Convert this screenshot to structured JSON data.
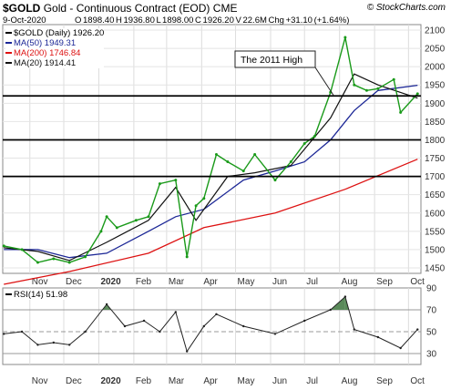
{
  "header": {
    "symbol": "$GOLD",
    "name": "Gold - Continuous Contract (EOD)",
    "exchange": "CME",
    "copyright": "© StockCharts.com",
    "date": "9-Oct-2020",
    "quote": "O 1898.40  H 1936.80  L 1898.00  C 1926.20  V 22.6M  Chg +31.10 (+1.64%)"
  },
  "price_legend": {
    "series_label": "$GOLD (Daily) 1926.20",
    "ma50": "MA(50) 1949.31",
    "ma200": "MA(200) 1746.84",
    "ma20": "MA(20) 1914.41"
  },
  "annotation": {
    "label": "The 2011 High"
  },
  "rsi_legend": {
    "label": "RSI(14) 51.98"
  },
  "colors": {
    "price": "#1a9a1a",
    "ma50": "#1c2796",
    "ma200": "#d11",
    "ma20": "#111111",
    "rsi_fill": "#5a8a5a",
    "hline": "#000000"
  },
  "chart_data": [
    {
      "type": "line",
      "title": "$GOLD (Daily)",
      "x_months": [
        "Nov",
        "Dec",
        "2020",
        "Feb",
        "Mar",
        "Apr",
        "May",
        "Jun",
        "Jul",
        "Aug",
        "Sep",
        "Oct"
      ],
      "y_ticks": [
        1450,
        1500,
        1550,
        1600,
        1650,
        1700,
        1750,
        1800,
        1850,
        1900,
        1950,
        2000,
        2050,
        2100
      ],
      "ylim": [
        1435,
        2115
      ],
      "horizontal_lines": [
        1920,
        1800,
        1700
      ],
      "annotation": {
        "text": "The 2011 High",
        "value": 1920
      },
      "series": [
        {
          "name": "$GOLD (Daily)",
          "x": [
            "2019-10-09",
            "2019-10-25",
            "2019-11-08",
            "2019-11-22",
            "2019-12-06",
            "2019-12-20",
            "2020-01-03",
            "2020-01-08",
            "2020-01-17",
            "2020-02-03",
            "2020-02-14",
            "2020-02-24",
            "2020-03-09",
            "2020-03-19",
            "2020-03-27",
            "2020-04-03",
            "2020-04-14",
            "2020-04-24",
            "2020-05-08",
            "2020-05-18",
            "2020-06-05",
            "2020-06-19",
            "2020-07-01",
            "2020-07-10",
            "2020-07-24",
            "2020-08-06",
            "2020-08-14",
            "2020-08-25",
            "2020-09-04",
            "2020-09-18",
            "2020-09-24",
            "2020-10-09"
          ],
          "values": [
            1510,
            1500,
            1465,
            1475,
            1465,
            1480,
            1550,
            1590,
            1560,
            1580,
            1590,
            1680,
            1690,
            1480,
            1620,
            1640,
            1760,
            1740,
            1715,
            1760,
            1690,
            1740,
            1790,
            1810,
            1930,
            2080,
            1950,
            1935,
            1940,
            1965,
            1875,
            1926
          ]
        },
        {
          "name": "MA(50)",
          "x": [
            "2019-10-09",
            "2019-11-08",
            "2019-12-06",
            "2020-01-08",
            "2020-02-14",
            "2020-03-09",
            "2020-04-03",
            "2020-05-08",
            "2020-06-05",
            "2020-07-01",
            "2020-07-24",
            "2020-08-14",
            "2020-09-04",
            "2020-10-09"
          ],
          "values": [
            1500,
            1500,
            1478,
            1490,
            1550,
            1590,
            1610,
            1690,
            1715,
            1740,
            1800,
            1880,
            1935,
            1949
          ]
        },
        {
          "name": "MA(200)",
          "x": [
            "2019-10-09",
            "2019-12-06",
            "2020-02-14",
            "2020-04-03",
            "2020-06-05",
            "2020-08-06",
            "2020-10-09"
          ],
          "values": [
            1405,
            1440,
            1490,
            1560,
            1600,
            1665,
            1747
          ]
        },
        {
          "name": "MA(20)",
          "x": [
            "2019-10-09",
            "2019-11-08",
            "2019-12-06",
            "2020-01-08",
            "2020-02-14",
            "2020-03-09",
            "2020-03-27",
            "2020-04-24",
            "2020-05-18",
            "2020-06-19",
            "2020-07-24",
            "2020-08-14",
            "2020-09-04",
            "2020-10-09"
          ],
          "values": [
            1505,
            1495,
            1470,
            1520,
            1580,
            1670,
            1580,
            1700,
            1710,
            1730,
            1860,
            1980,
            1950,
            1914
          ]
        }
      ]
    },
    {
      "type": "area",
      "title": "RSI(14)",
      "x_months": [
        "Nov",
        "Dec",
        "2020",
        "Feb",
        "Mar",
        "Apr",
        "May",
        "Jun",
        "Jul",
        "Aug",
        "Sep",
        "Oct"
      ],
      "y_ticks": [
        30,
        50,
        70,
        90
      ],
      "ylim": [
        20,
        90
      ],
      "horizontal_lines": [
        30,
        50,
        70
      ],
      "series": [
        {
          "name": "RSI(14)",
          "x": [
            "2019-10-09",
            "2019-10-25",
            "2019-11-08",
            "2019-11-22",
            "2019-12-06",
            "2019-12-20",
            "2020-01-08",
            "2020-01-24",
            "2020-02-10",
            "2020-02-24",
            "2020-03-09",
            "2020-03-19",
            "2020-04-03",
            "2020-04-14",
            "2020-05-08",
            "2020-06-05",
            "2020-07-01",
            "2020-07-24",
            "2020-08-06",
            "2020-08-14",
            "2020-09-04",
            "2020-09-24",
            "2020-10-09"
          ],
          "values": [
            48,
            50,
            38,
            40,
            38,
            50,
            75,
            55,
            60,
            50,
            68,
            32,
            55,
            66,
            55,
            48,
            60,
            70,
            82,
            52,
            45,
            35,
            52
          ]
        }
      ]
    }
  ]
}
